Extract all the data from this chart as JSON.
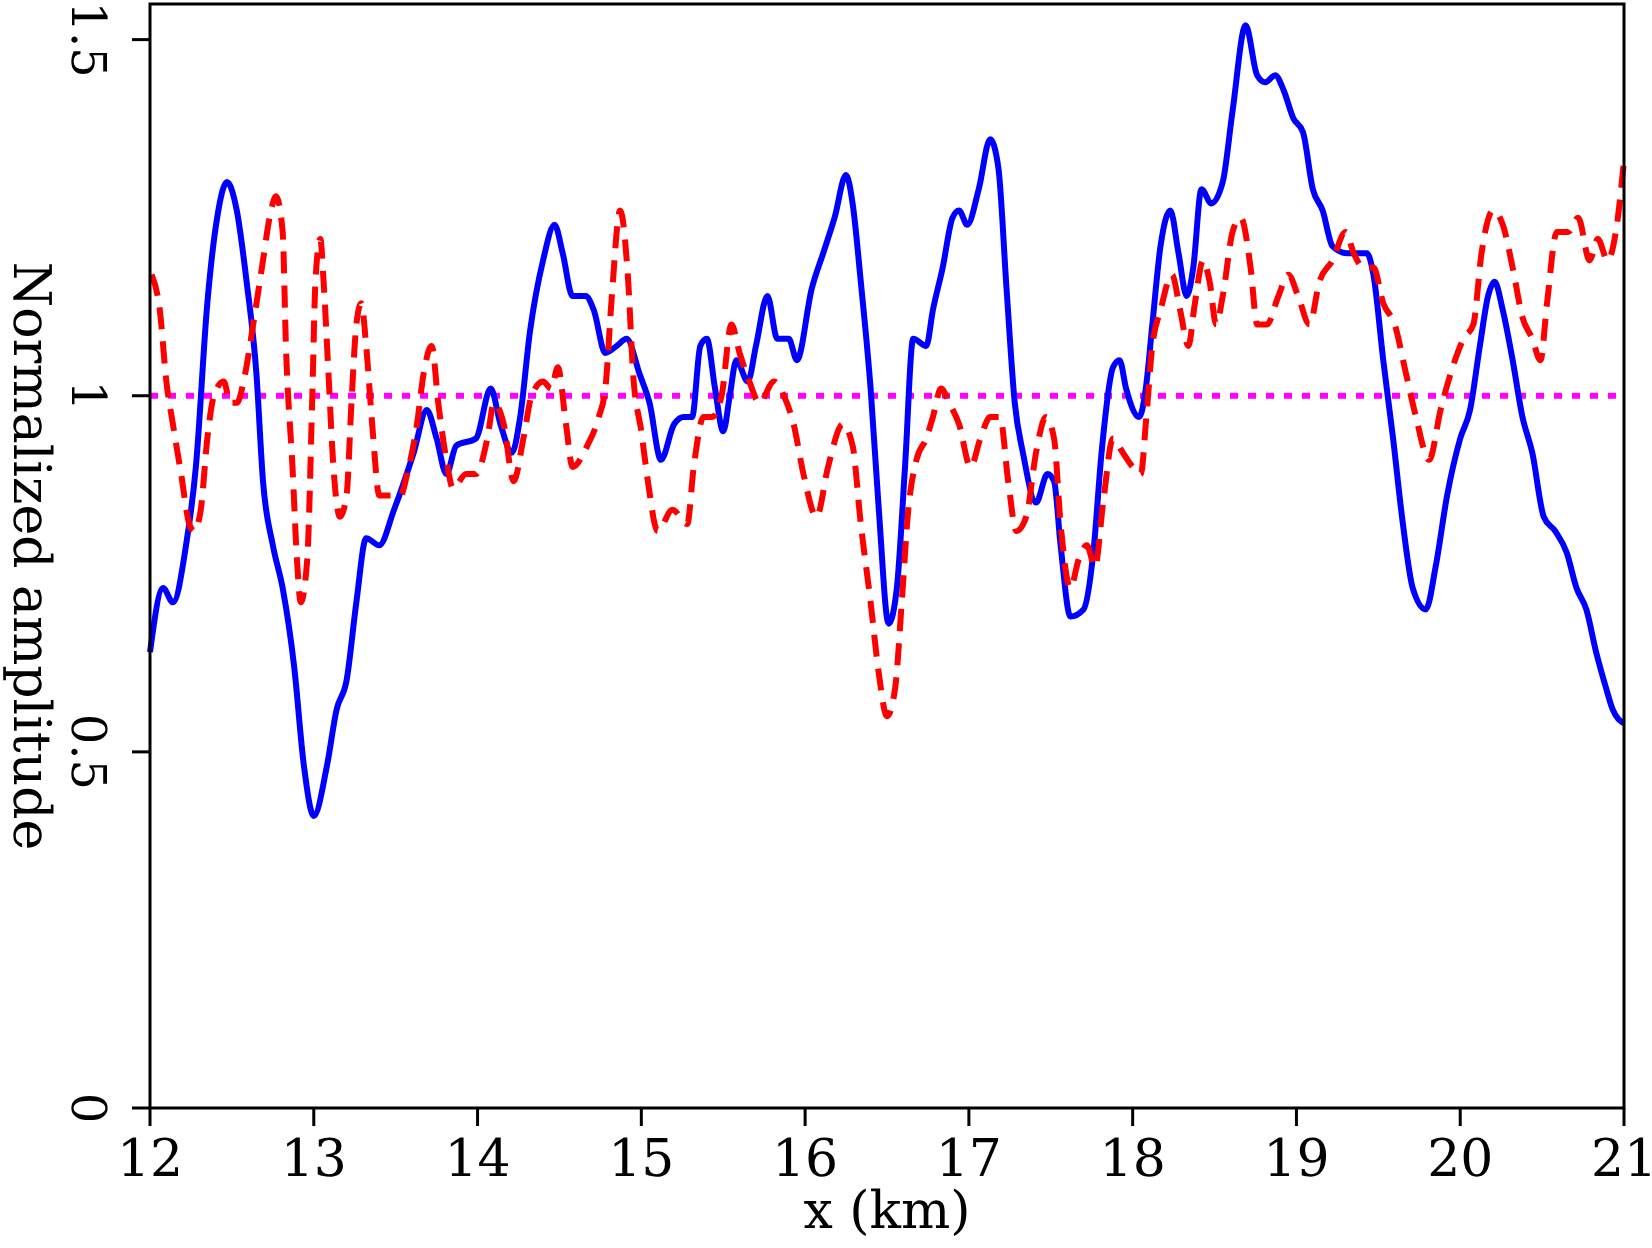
{
  "chart_data": {
    "type": "line",
    "xlabel": "x (km)",
    "ylabel": "Normalized amplitude",
    "xlim": [
      12,
      21
    ],
    "ylim": [
      0,
      1.55
    ],
    "xticks": [
      12,
      13,
      14,
      15,
      16,
      17,
      18,
      19,
      20,
      21
    ],
    "yticks": [
      0,
      0.5,
      1,
      1.5
    ],
    "series": [
      {
        "color": "#0000ff",
        "line_style": "solid",
        "x": [
          12.0,
          12.08,
          12.14,
          12.22,
          12.28,
          12.35,
          12.41,
          12.47,
          12.53,
          12.59,
          12.65,
          12.69,
          12.75,
          12.81,
          12.88,
          12.94,
          13.0,
          13.08,
          13.14,
          13.2,
          13.26,
          13.32,
          13.4,
          13.49,
          13.61,
          13.69,
          13.75,
          13.81,
          13.87,
          13.99,
          14.08,
          14.14,
          14.21,
          14.26,
          14.32,
          14.4,
          14.47,
          14.52,
          14.58,
          14.66,
          14.71,
          14.78,
          14.85,
          14.91,
          14.99,
          15.05,
          15.12,
          15.2,
          15.26,
          15.31,
          15.36,
          15.4,
          15.45,
          15.5,
          15.54,
          15.58,
          15.65,
          15.7,
          15.77,
          15.83,
          15.9,
          15.95,
          16.04,
          16.11,
          16.18,
          16.25,
          16.29,
          16.34,
          16.4,
          16.45,
          16.51,
          16.56,
          16.61,
          16.66,
          16.74,
          16.78,
          16.84,
          16.9,
          16.94,
          16.99,
          17.06,
          17.13,
          17.18,
          17.23,
          17.28,
          17.33,
          17.41,
          17.48,
          17.52,
          17.56,
          17.62,
          17.7,
          17.76,
          17.81,
          17.88,
          17.92,
          17.96,
          18.04,
          18.08,
          18.12,
          18.17,
          18.23,
          18.28,
          18.33,
          18.37,
          18.42,
          18.48,
          18.55,
          18.61,
          18.69,
          18.76,
          18.81,
          18.87,
          18.92,
          18.98,
          19.04,
          19.1,
          19.16,
          19.22,
          19.31,
          19.43,
          19.47,
          19.53,
          19.59,
          19.65,
          19.71,
          19.79,
          19.85,
          19.92,
          20.0,
          20.06,
          20.12,
          20.17,
          20.21,
          20.26,
          20.32,
          20.38,
          20.44,
          20.51,
          20.58,
          20.65,
          20.71,
          20.77,
          20.83,
          20.89,
          20.93,
          21.0
        ],
        "values": [
          0.64,
          0.73,
          0.71,
          0.79,
          0.9,
          1.13,
          1.25,
          1.3,
          1.26,
          1.16,
          1.03,
          0.88,
          0.79,
          0.73,
          0.62,
          0.48,
          0.41,
          0.48,
          0.56,
          0.6,
          0.71,
          0.8,
          0.79,
          0.84,
          0.92,
          0.98,
          0.94,
          0.89,
          0.93,
          0.94,
          1.01,
          0.96,
          0.92,
          0.97,
          1.09,
          1.19,
          1.24,
          1.2,
          1.14,
          1.14,
          1.12,
          1.06,
          1.07,
          1.08,
          1.03,
          0.99,
          0.91,
          0.96,
          0.97,
          0.97,
          1.07,
          1.08,
          1.01,
          0.95,
          1.0,
          1.05,
          1.02,
          1.07,
          1.14,
          1.08,
          1.08,
          1.05,
          1.15,
          1.2,
          1.25,
          1.31,
          1.27,
          1.16,
          1.01,
          0.84,
          0.68,
          0.73,
          0.9,
          1.08,
          1.07,
          1.12,
          1.18,
          1.25,
          1.26,
          1.24,
          1.29,
          1.36,
          1.32,
          1.15,
          0.99,
          0.92,
          0.85,
          0.89,
          0.88,
          0.79,
          0.69,
          0.7,
          0.78,
          0.92,
          1.04,
          1.05,
          1.01,
          0.97,
          1.01,
          1.1,
          1.21,
          1.26,
          1.2,
          1.14,
          1.18,
          1.29,
          1.27,
          1.3,
          1.4,
          1.52,
          1.45,
          1.44,
          1.45,
          1.43,
          1.39,
          1.37,
          1.29,
          1.26,
          1.21,
          1.2,
          1.2,
          1.17,
          1.05,
          0.94,
          0.82,
          0.73,
          0.7,
          0.76,
          0.86,
          0.94,
          0.98,
          1.07,
          1.14,
          1.16,
          1.12,
          1.05,
          0.97,
          0.92,
          0.83,
          0.81,
          0.78,
          0.73,
          0.7,
          0.64,
          0.59,
          0.56,
          0.54
        ]
      },
      {
        "color": "#ff0000",
        "line_style": "dashed",
        "x": [
          12.01,
          12.06,
          12.1,
          12.14,
          12.19,
          12.24,
          12.27,
          12.31,
          12.35,
          12.39,
          12.45,
          12.49,
          12.53,
          12.58,
          12.63,
          12.69,
          12.73,
          12.77,
          12.81,
          12.83,
          12.87,
          12.9,
          12.92,
          12.96,
          12.99,
          13.01,
          13.04,
          13.06,
          13.09,
          13.12,
          13.16,
          13.2,
          13.23,
          13.26,
          13.29,
          13.32,
          13.36,
          13.4,
          13.47,
          13.53,
          13.57,
          13.63,
          13.67,
          13.72,
          13.76,
          13.81,
          13.85,
          13.93,
          13.99,
          14.06,
          14.1,
          14.16,
          14.22,
          14.28,
          14.33,
          14.4,
          14.45,
          14.49,
          14.54,
          14.58,
          14.67,
          14.74,
          14.78,
          14.82,
          14.87,
          14.92,
          14.95,
          15.0,
          15.04,
          15.1,
          15.19,
          15.28,
          15.32,
          15.38,
          15.43,
          15.49,
          15.55,
          15.6,
          15.66,
          15.72,
          15.81,
          15.87,
          15.93,
          15.99,
          16.07,
          16.14,
          16.23,
          16.29,
          16.34,
          16.4,
          16.45,
          16.5,
          16.55,
          16.59,
          16.63,
          16.68,
          16.74,
          16.78,
          16.83,
          16.88,
          16.94,
          17.01,
          17.07,
          17.13,
          17.19,
          17.24,
          17.29,
          17.35,
          17.41,
          17.47,
          17.52,
          17.56,
          17.62,
          17.67,
          17.72,
          17.77,
          17.82,
          17.88,
          17.94,
          18.0,
          18.05,
          18.08,
          18.12,
          18.17,
          18.24,
          18.29,
          18.34,
          18.38,
          18.43,
          18.47,
          18.51,
          18.55,
          18.61,
          18.66,
          18.72,
          18.76,
          18.82,
          18.89,
          18.95,
          19.01,
          19.08,
          19.14,
          19.22,
          19.3,
          19.35,
          19.41,
          19.47,
          19.53,
          19.6,
          19.67,
          19.73,
          19.81,
          19.88,
          19.94,
          20.02,
          20.08,
          20.13,
          20.2,
          20.26,
          20.32,
          20.38,
          20.44,
          20.49,
          20.53,
          20.59,
          20.66,
          20.72,
          20.79,
          20.84,
          20.9,
          20.95,
          21.0
        ],
        "values": [
          1.17,
          1.12,
          1.02,
          0.96,
          0.89,
          0.82,
          0.81,
          0.84,
          0.94,
          1.0,
          1.02,
          0.99,
          0.99,
          1.03,
          1.1,
          1.19,
          1.25,
          1.28,
          1.23,
          1.07,
          0.9,
          0.76,
          0.71,
          0.77,
          0.99,
          1.16,
          1.22,
          1.16,
          1.03,
          0.9,
          0.83,
          0.86,
          0.99,
          1.1,
          1.13,
          1.07,
          0.95,
          0.86,
          0.86,
          0.86,
          0.89,
          0.96,
          1.03,
          1.07,
          0.99,
          0.91,
          0.87,
          0.89,
          0.89,
          0.94,
          0.99,
          0.96,
          0.88,
          0.94,
          1.0,
          1.02,
          1.01,
          1.04,
          0.96,
          0.9,
          0.93,
          0.97,
          1.01,
          1.14,
          1.26,
          1.16,
          1.03,
          0.95,
          0.88,
          0.81,
          0.84,
          0.82,
          0.9,
          0.97,
          0.97,
          1.0,
          1.1,
          1.06,
          1.02,
          0.99,
          1.02,
          1.0,
          0.96,
          0.89,
          0.83,
          0.9,
          0.96,
          0.93,
          0.82,
          0.71,
          0.61,
          0.55,
          0.59,
          0.71,
          0.84,
          0.91,
          0.94,
          0.97,
          1.01,
          0.99,
          0.96,
          0.9,
          0.94,
          0.97,
          0.97,
          0.88,
          0.81,
          0.83,
          0.92,
          0.97,
          0.94,
          0.82,
          0.73,
          0.77,
          0.79,
          0.76,
          0.85,
          0.94,
          0.92,
          0.9,
          0.89,
          0.96,
          1.07,
          1.12,
          1.17,
          1.12,
          1.07,
          1.13,
          1.19,
          1.16,
          1.1,
          1.14,
          1.23,
          1.25,
          1.18,
          1.1,
          1.1,
          1.14,
          1.17,
          1.14,
          1.1,
          1.16,
          1.19,
          1.23,
          1.2,
          1.18,
          1.18,
          1.13,
          1.1,
          1.03,
          0.97,
          0.91,
          0.98,
          1.03,
          1.08,
          1.1,
          1.2,
          1.26,
          1.24,
          1.18,
          1.11,
          1.08,
          1.05,
          1.13,
          1.23,
          1.23,
          1.25,
          1.19,
          1.22,
          1.19,
          1.23,
          1.33
        ]
      }
    ],
    "ref_lines": [
      {
        "axis": "y",
        "value": 1,
        "color": "#ff00ff",
        "line_style": "dotted"
      }
    ]
  }
}
